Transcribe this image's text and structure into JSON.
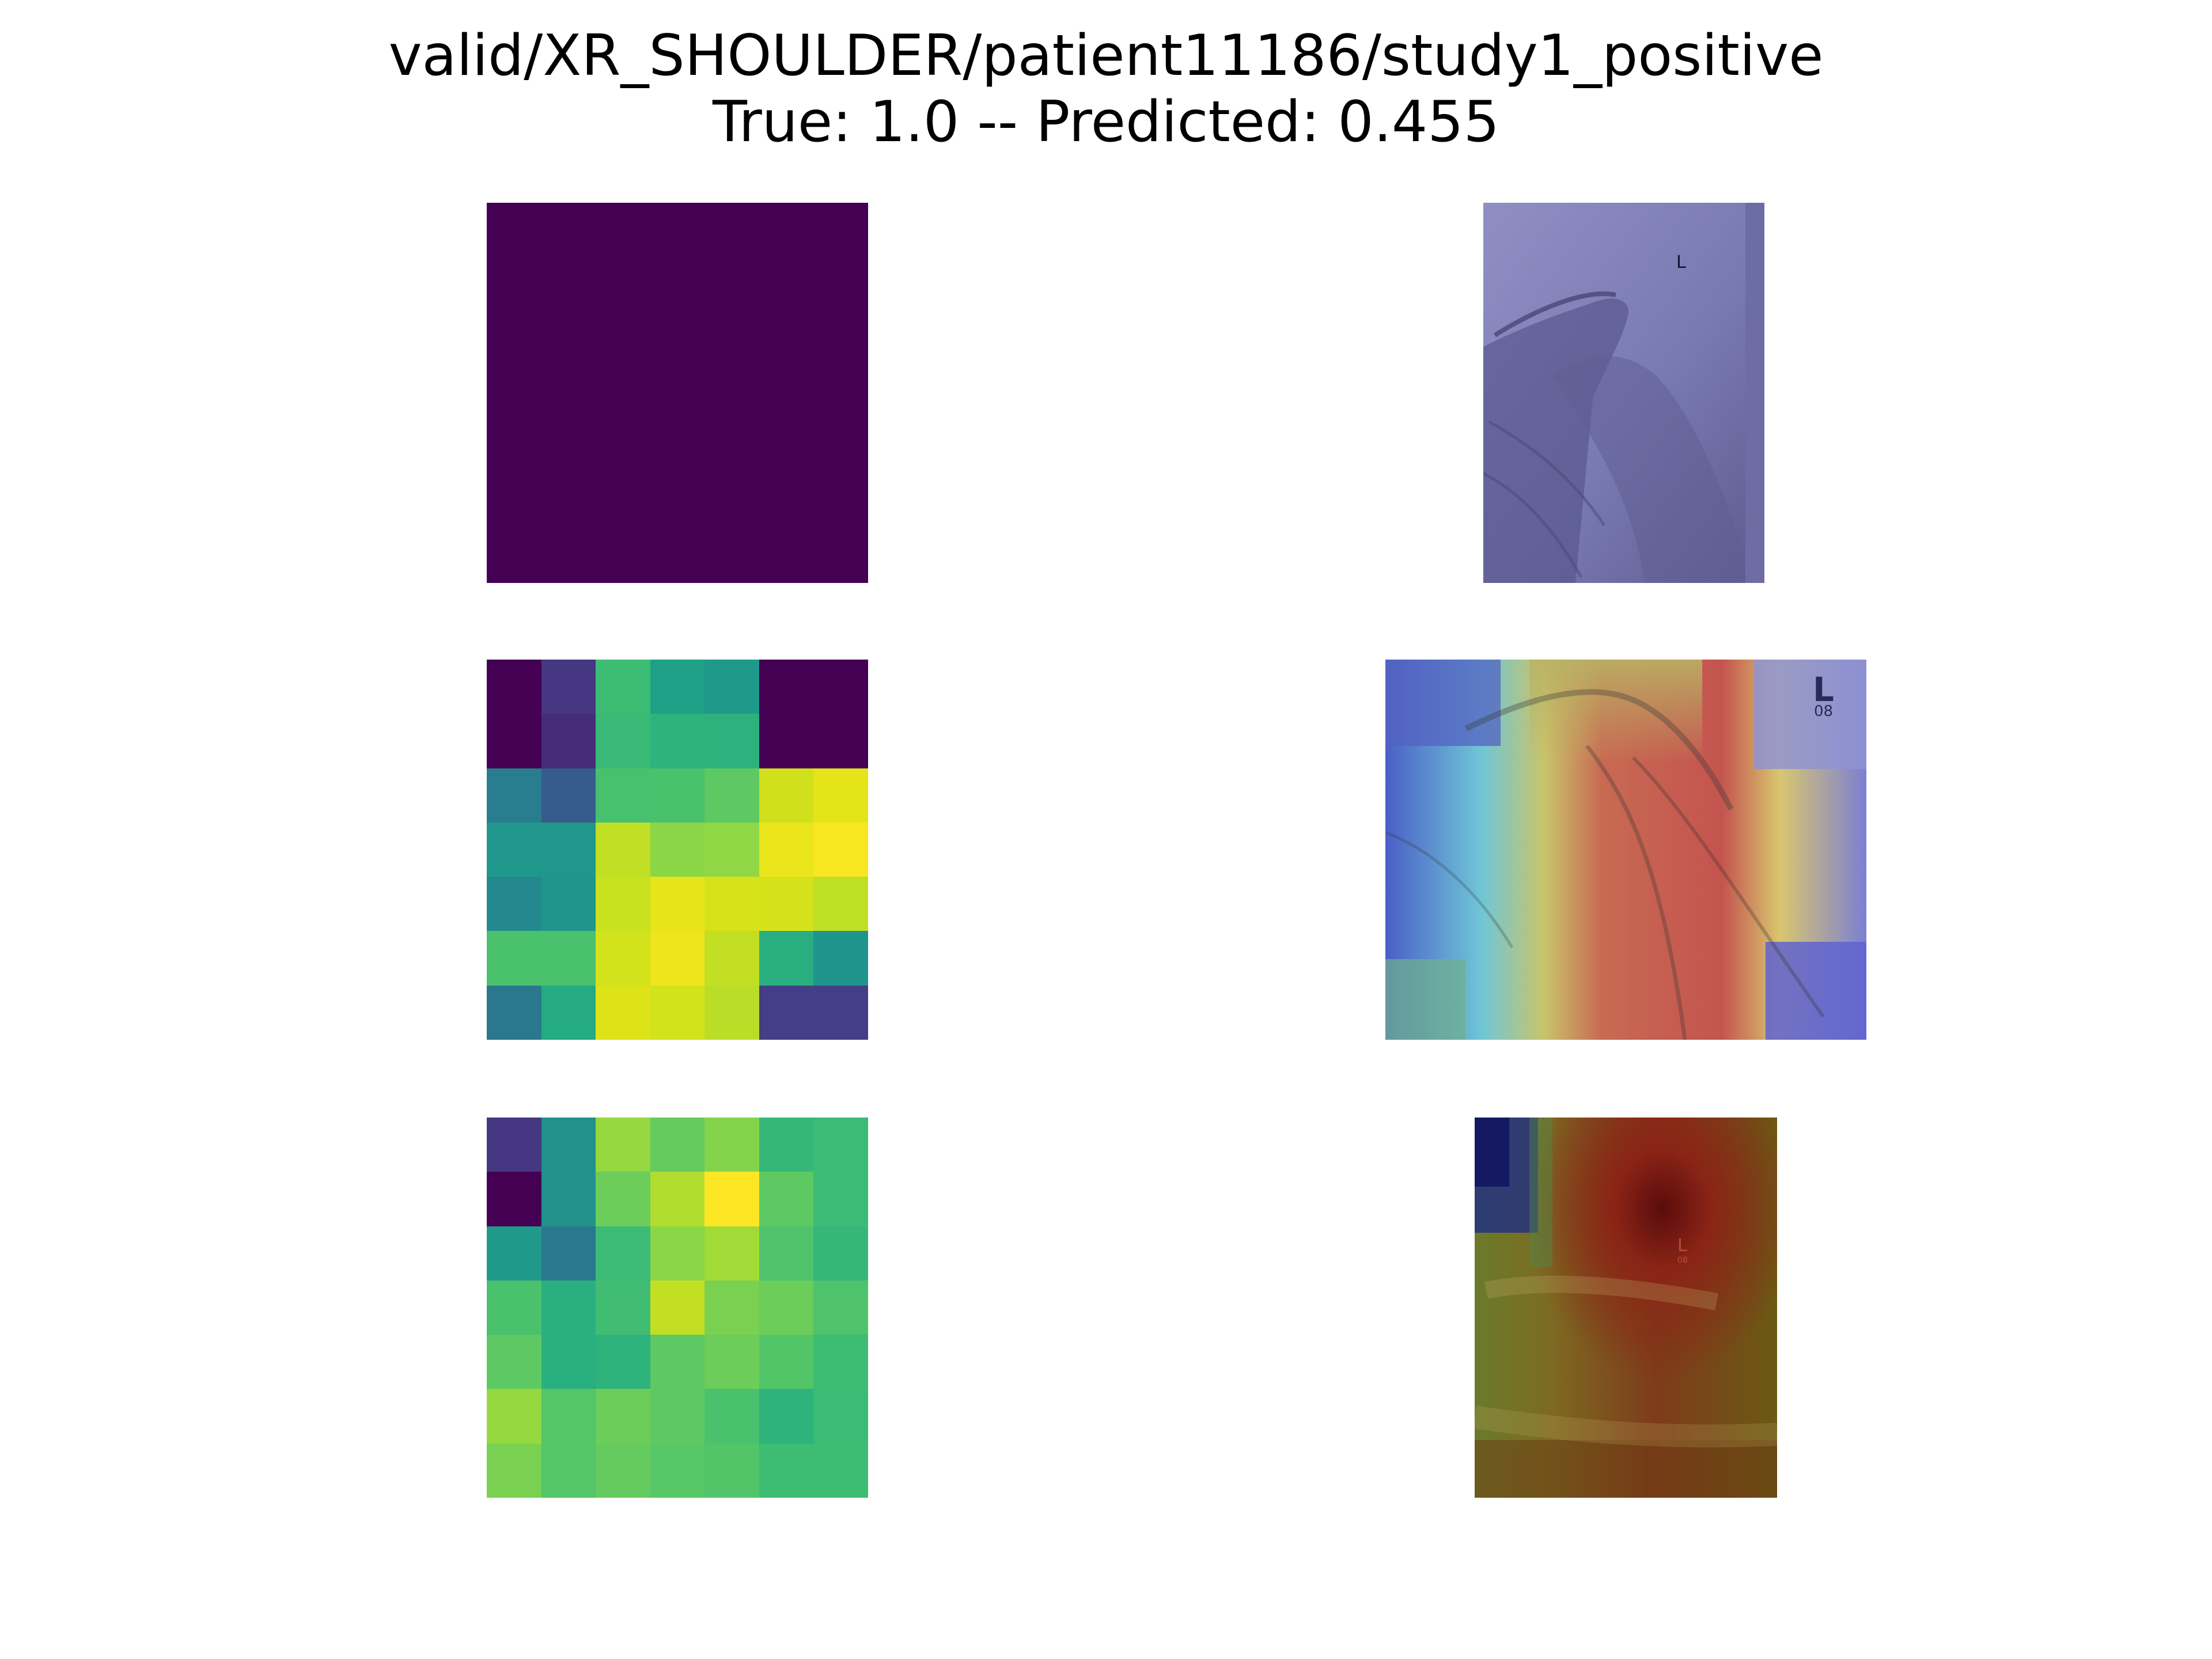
{
  "figure": {
    "title_line1": "valid/XR_SHOULDER/patient11186/study1_positive",
    "title_line2": "True: 1.0 -- Predicted: 0.455"
  },
  "panels": {
    "row1_map": {
      "fill": "#440154"
    },
    "row1_xray": {
      "label": "L"
    },
    "row2_map": {
      "grid": [
        [
          "#440154",
          "#453781",
          "#3dbc74",
          "#1fa187",
          "#1f9a8a",
          "#440154",
          "#440154"
        ],
        [
          "#440154",
          "#472c7a",
          "#3aba76",
          "#2eb37c",
          "#2db27d",
          "#440154",
          "#440154"
        ],
        [
          "#287d8e",
          "#365c8d",
          "#48c16e",
          "#4ac16d",
          "#5ec962",
          "#d0e11c",
          "#e5e419"
        ],
        [
          "#1f988b",
          "#1f988b",
          "#c0df25",
          "#8bd646",
          "#8fd744",
          "#eae51a",
          "#f8e621"
        ],
        [
          "#23898e",
          "#1f958b",
          "#cae11f",
          "#e7e419",
          "#d8e219",
          "#d5e21a",
          "#bddf26"
        ],
        [
          "#4ac16d",
          "#4ac16d",
          "#d2e21b",
          "#efe51c",
          "#c2df23",
          "#29af7f",
          "#1f948c"
        ],
        [
          "#2a788e",
          "#25ab82",
          "#dde318",
          "#d2e21b",
          "#bade28",
          "#433e85",
          "#433e85"
        ]
      ]
    },
    "row2_xray": {
      "label": "L",
      "sublabel": "08"
    },
    "row3_map": {
      "grid": [
        [
          "#453781",
          "#21918c",
          "#95d840",
          "#65cb5e",
          "#84d44b",
          "#35b779",
          "#3bbb75"
        ],
        [
          "#440154",
          "#21918c",
          "#6ccd5a",
          "#b0dd2f",
          "#fde725",
          "#5ec962",
          "#3bbb75"
        ],
        [
          "#1f9a8a",
          "#2a788e",
          "#3bbb75",
          "#8bd646",
          "#a2da37",
          "#4ec36b",
          "#35b779"
        ],
        [
          "#4ac16d",
          "#2ab07f",
          "#40bd72",
          "#c2df23",
          "#7ad151",
          "#6ccd5a",
          "#4ec36b"
        ],
        [
          "#5ec962",
          "#2ab07f",
          "#2eb37c",
          "#5ec962",
          "#6ccd5a",
          "#52c569",
          "#3dbc74"
        ],
        [
          "#95d840",
          "#54c568",
          "#6ccd5a",
          "#5ec962",
          "#4ac16d",
          "#2eb37c",
          "#3bbb75"
        ],
        [
          "#7ad151",
          "#54c568",
          "#65cb5e",
          "#58c765",
          "#52c569",
          "#3dbc74",
          "#3dbc74"
        ]
      ]
    },
    "row3_xray": {
      "label": "L",
      "sublabel": "08"
    }
  }
}
